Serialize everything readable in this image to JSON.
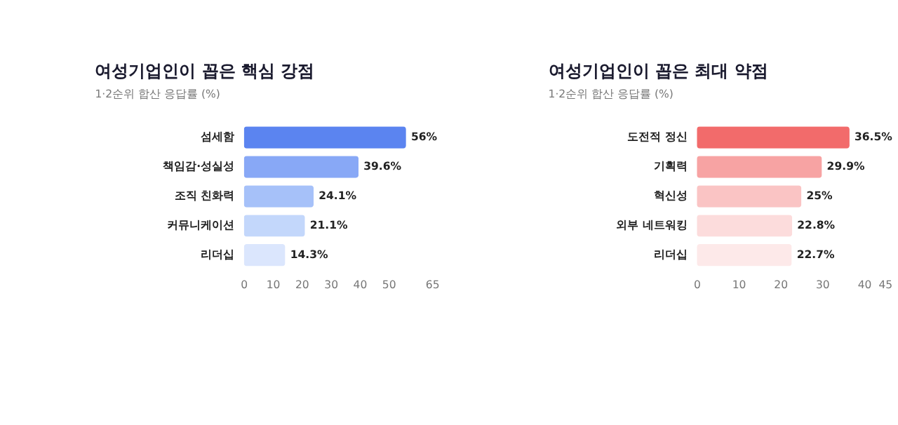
{
  "chart_data": [
    {
      "type": "bar",
      "orientation": "horizontal",
      "title": "여성기업인이 꼽은 핵심 강점",
      "subtitle": "1·2순위 합산 응답률 (%)",
      "categories": [
        "섬세함",
        "책임감·성실성",
        "조직 친화력",
        "커뮤니케이션",
        "리더십"
      ],
      "values": [
        56,
        39.6,
        24.1,
        21.1,
        14.3
      ],
      "value_labels": [
        "56%",
        "39.6%",
        "24.1%",
        "21.1%",
        "14.3%"
      ],
      "colors": [
        "#5b84f0",
        "#88a8f6",
        "#a6c1f9",
        "#c3d7fb",
        "#dbe6fd"
      ],
      "xlim": [
        0,
        65
      ],
      "xticks": [
        0,
        10,
        20,
        30,
        40,
        50,
        65
      ],
      "grid": false
    },
    {
      "type": "bar",
      "orientation": "horizontal",
      "title": "여성기업인이 꼽은 최대 약점",
      "subtitle": "1·2순위 합산 응답률 (%)",
      "categories": [
        "도전적 정신",
        "기획력",
        "혁신성",
        "외부 네트워킹",
        "리더십"
      ],
      "values": [
        36.5,
        29.9,
        25,
        22.8,
        22.7
      ],
      "value_labels": [
        "36.5%",
        "29.9%",
        "25%",
        "22.8%",
        "22.7%"
      ],
      "colors": [
        "#f26b6b",
        "#f7a3a3",
        "#fac4c4",
        "#fcdcdc",
        "#fde9e9"
      ],
      "xlim": [
        0,
        45
      ],
      "xticks": [
        0,
        10,
        20,
        30,
        40,
        45
      ],
      "grid": false
    }
  ]
}
